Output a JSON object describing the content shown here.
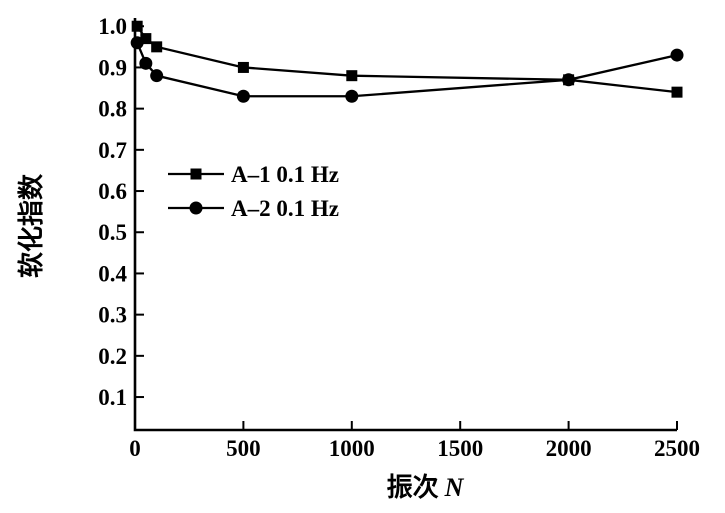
{
  "chart_data": {
    "type": "line",
    "title": "",
    "xlabel": "振次",
    "xlabel_variable": "N",
    "ylabel": "软化指数",
    "xlim": [
      0,
      2500
    ],
    "ylim": [
      0.02,
      1.02
    ],
    "x_ticks": [
      0,
      500,
      1000,
      1500,
      2000,
      2500
    ],
    "y_ticks": [
      0.1,
      0.2,
      0.3,
      0.4,
      0.5,
      0.6,
      0.7,
      0.8,
      0.9,
      1.0
    ],
    "grid": false,
    "legend_position": "upper-left-inside",
    "x": [
      10,
      50,
      100,
      500,
      1000,
      2000,
      2500
    ],
    "series": [
      {
        "name": "A–1 0.1 Hz",
        "marker": "square",
        "values": [
          1.0,
          0.97,
          0.95,
          0.9,
          0.88,
          0.87,
          0.84
        ]
      },
      {
        "name": "A–2 0.1 Hz",
        "marker": "circle",
        "values": [
          0.96,
          0.91,
          0.88,
          0.83,
          0.83,
          0.87,
          0.93
        ]
      }
    ],
    "colors": {
      "foreground": "#000000",
      "background": "#ffffff"
    }
  }
}
